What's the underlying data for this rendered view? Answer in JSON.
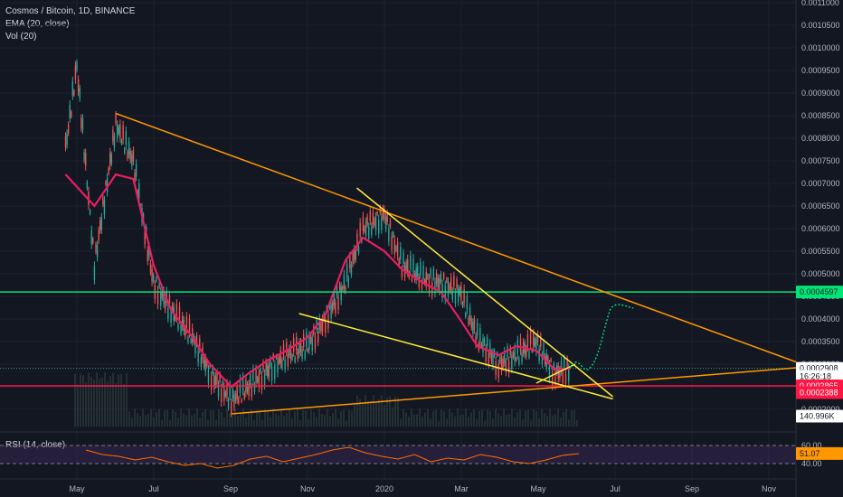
{
  "legend": {
    "symbol": "Cosmos / Bitcoin, 1D, BINANCE",
    "ema": "EMA (20, close)",
    "vol": "Vol (20)",
    "rsi": "RSI (14, close)"
  },
  "colors": {
    "background": "#131722",
    "ema": "#e91e63",
    "trendline_orange": "#ff9800",
    "trendline_yellow": "#ffeb3b",
    "level_green": "#00e676",
    "level_red": "#ff1744",
    "projection": "#00e676",
    "rsi_line": "#ff6d00",
    "rsi_band": "#4a2f6e"
  },
  "chart_data": {
    "type": "line",
    "title": "Cosmos / Bitcoin, 1D, BINANCE",
    "ylim": [
      0.00017,
      0.00111
    ],
    "y_ticks": [
      "0.0011000",
      "0.0010500",
      "0.0010000",
      "0.0009500",
      "0.0009000",
      "0.0008500",
      "0.0008000",
      "0.0007500",
      "0.0007000",
      "0.0006500",
      "0.0006000",
      "0.0005500",
      "0.0005000",
      "0.0004500",
      "0.0004000",
      "0.0003500",
      "0.0003000",
      "0.0002500",
      "0.0002000"
    ],
    "x_ticks": [
      "May",
      "Jul",
      "Sep",
      "Nov",
      "2020",
      "Mar",
      "May",
      "Jul",
      "Sep",
      "Nov"
    ],
    "price_series": {
      "name": "ATOM/BTC",
      "x": [
        "2019-04-22",
        "2019-05-01",
        "2019-05-15",
        "2019-06-01",
        "2019-06-15",
        "2019-07-01",
        "2019-07-15",
        "2019-08-01",
        "2019-08-15",
        "2019-09-01",
        "2019-09-15",
        "2019-10-01",
        "2019-10-15",
        "2019-11-01",
        "2019-11-15",
        "2019-12-01",
        "2019-12-15",
        "2020-01-01",
        "2020-01-15",
        "2020-02-01",
        "2020-02-15",
        "2020-03-01",
        "2020-03-15",
        "2020-04-01",
        "2020-04-15",
        "2020-05-01",
        "2020-05-15",
        "2020-05-28"
      ],
      "y": [
        0.00078,
        0.00096,
        0.00052,
        0.00083,
        0.00075,
        0.00048,
        0.00042,
        0.00036,
        0.00028,
        0.00022,
        0.00025,
        0.00029,
        0.00032,
        0.00034,
        0.0004,
        0.00048,
        0.0006,
        0.00063,
        0.00052,
        0.00049,
        0.00048,
        0.00046,
        0.00036,
        0.0003,
        0.00032,
        0.00035,
        0.00028,
        0.00029
      ]
    },
    "ema_series": {
      "name": "EMA (20, close)",
      "x": [
        "2019-04-22",
        "2019-05-15",
        "2019-06-01",
        "2019-06-15",
        "2019-07-01",
        "2019-07-15",
        "2019-08-01",
        "2019-08-15",
        "2019-09-01",
        "2019-09-15",
        "2019-10-01",
        "2019-10-15",
        "2019-11-01",
        "2019-11-15",
        "2019-12-01",
        "2019-12-15",
        "2020-01-01",
        "2020-01-15",
        "2020-02-01",
        "2020-02-15",
        "2020-03-01",
        "2020-03-15",
        "2020-04-01",
        "2020-04-15",
        "2020-05-01",
        "2020-05-15",
        "2020-05-28"
      ],
      "y": [
        0.00072,
        0.00065,
        0.00072,
        0.00071,
        0.00052,
        0.00042,
        0.00036,
        0.0003,
        0.00025,
        0.00028,
        0.00031,
        0.00033,
        0.00036,
        0.00041,
        0.00053,
        0.00058,
        0.00055,
        0.00051,
        0.00048,
        0.00046,
        0.0004,
        0.00034,
        0.00032,
        0.00034,
        0.00033,
        0.00029,
        0.00029
      ]
    },
    "price_labels": [
      {
        "label": "0.0004597",
        "value": 0.0004597,
        "color": "#00e676",
        "text_color": "#131722"
      },
      {
        "label": "0.0002908",
        "value": 0.0002908,
        "color": "#ffffff",
        "text_color": "#131722"
      },
      {
        "label": "16:26:18",
        "value": 0.0002728,
        "color": "#ffffff",
        "text_color": "#131722"
      },
      {
        "label": "0.0002865",
        "value": 0.000252,
        "color": "#ff1744",
        "text_color": "#ffffff"
      },
      {
        "label": "0.0002388",
        "value": 0.000237,
        "color": "#ff1744",
        "text_color": "#ffffff"
      },
      {
        "label": "140.996K",
        "value": 0.000185,
        "color": "#ffffff",
        "text_color": "#131722"
      }
    ],
    "horizontal_levels": [
      {
        "name": "resistance",
        "value": 0.0004597,
        "color": "#00e676"
      },
      {
        "name": "support",
        "value": 0.000252,
        "color": "#ff1744"
      }
    ],
    "rsi": {
      "name": "RSI (14, close)",
      "upper": 60,
      "lower": 40,
      "ticks": [
        "60.00",
        "51.07",
        "40.00"
      ],
      "last": 51.07,
      "values": [
        55,
        50,
        48,
        44,
        47,
        42,
        38,
        40,
        35,
        38,
        45,
        48,
        42,
        46,
        50,
        55,
        58,
        52,
        48,
        45,
        50,
        42,
        46,
        44,
        50,
        47,
        42,
        40,
        44,
        49,
        51
      ]
    },
    "volume_label": "140.996K"
  }
}
